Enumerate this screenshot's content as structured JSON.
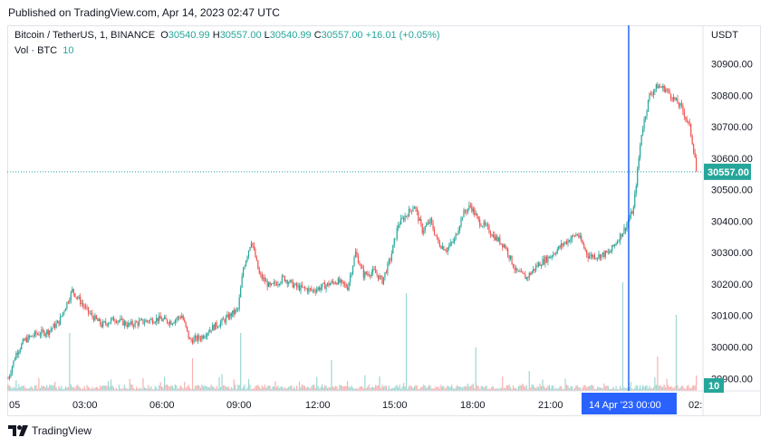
{
  "header": {
    "published": "Published on TradingView.com, Apr 14, 2023 02:47 UTC"
  },
  "legend": {
    "symbol": "Bitcoin / TetherUS, 1, BINANCE",
    "o_label": "O",
    "open": "30540.99",
    "h_label": "H",
    "high": "30557.00",
    "l_label": "L",
    "low": "30540.99",
    "c_label": "C",
    "close": "30557.00",
    "change": "+16.01 (+0.05%)",
    "vol_label": "Vol · BTC",
    "vol_value": "10"
  },
  "currency": "USDT",
  "footer": {
    "brand": "TradingView",
    "logo": "tradingview-logo-icon"
  },
  "colors": {
    "up": "#26a69a",
    "down": "#ef5350",
    "crosshair": "#2962ff",
    "price_line": "#26a69a"
  },
  "chart_data": {
    "type": "candlestick",
    "interval": "1 minute",
    "y_axis": {
      "ticks": [
        29900,
        30000,
        30100,
        30200,
        30300,
        30400,
        30500,
        30600,
        30700,
        30800,
        30900
      ],
      "ylim": [
        29780,
        30965
      ],
      "side": "right"
    },
    "x_axis": {
      "tick_labels": [
        "05",
        "03:00",
        "06:00",
        "09:00",
        "12:00",
        "15:00",
        "18:00",
        "21:00",
        "14 Apr '23",
        "00:00",
        "02:"
      ],
      "crosshair_label": "14 Apr '23   00:00"
    },
    "last_price": "30557.00",
    "last_volume": "10",
    "price_path": {
      "t": [
        0,
        0.3,
        0.6,
        1,
        1.5,
        1.9,
        2.4,
        3,
        3.5,
        4,
        4.5,
        5,
        5.6,
        6.1,
        6.5,
        6.8,
        7.2,
        7.6,
        8,
        8.3,
        8.6,
        8.8,
        9.1,
        9.4,
        9.8,
        10.3,
        10.8,
        11.4,
        12,
        12.3,
        12.7,
        13,
        13.3,
        13.7,
        14,
        14.3,
        14.6,
        14.9,
        15.2,
        15.5,
        15.8,
        16.1,
        16.4,
        16.7,
        17,
        17.3,
        17.6,
        17.9,
        18.2,
        18.6,
        19,
        19.4,
        19.8,
        20.3,
        20.8,
        21.3,
        21.7,
        22.1,
        22.5,
        22.8,
        23.1,
        23.4,
        23.7,
        24,
        24.3,
        24.6,
        24.9,
        25.2,
        25.5,
        25.8
      ],
      "price": [
        29900,
        29980,
        30020,
        30040,
        30050,
        30080,
        30180,
        30110,
        30070,
        30090,
        30070,
        30080,
        30090,
        30080,
        30100,
        30020,
        30030,
        30060,
        30080,
        30100,
        30120,
        30250,
        30340,
        30230,
        30190,
        30220,
        30190,
        30180,
        30200,
        30210,
        30190,
        30300,
        30230,
        30240,
        30210,
        30280,
        30390,
        30420,
        30450,
        30370,
        30400,
        30330,
        30310,
        30340,
        30420,
        30450,
        30400,
        30380,
        30350,
        30320,
        30240,
        30220,
        30260,
        30290,
        30330,
        30360,
        30290,
        30290,
        30300,
        30340,
        30380,
        30440,
        30680,
        30800,
        30830,
        30820,
        30790,
        30760,
        30700,
        30557
      ]
    },
    "volume": {
      "typical_range": [
        0,
        100
      ],
      "spikes": [
        {
          "t": 2.3,
          "v": 160
        },
        {
          "t": 6.9,
          "v": 90
        },
        {
          "t": 8.7,
          "v": 160
        },
        {
          "t": 12.1,
          "v": 85
        },
        {
          "t": 14.9,
          "v": 270
        },
        {
          "t": 17.5,
          "v": 120
        },
        {
          "t": 19.5,
          "v": 55
        },
        {
          "t": 23.0,
          "v": 300
        },
        {
          "t": 24.3,
          "v": 95
        },
        {
          "t": 25.0,
          "v": 210
        },
        {
          "t": 25.8,
          "v": 145
        }
      ]
    }
  }
}
